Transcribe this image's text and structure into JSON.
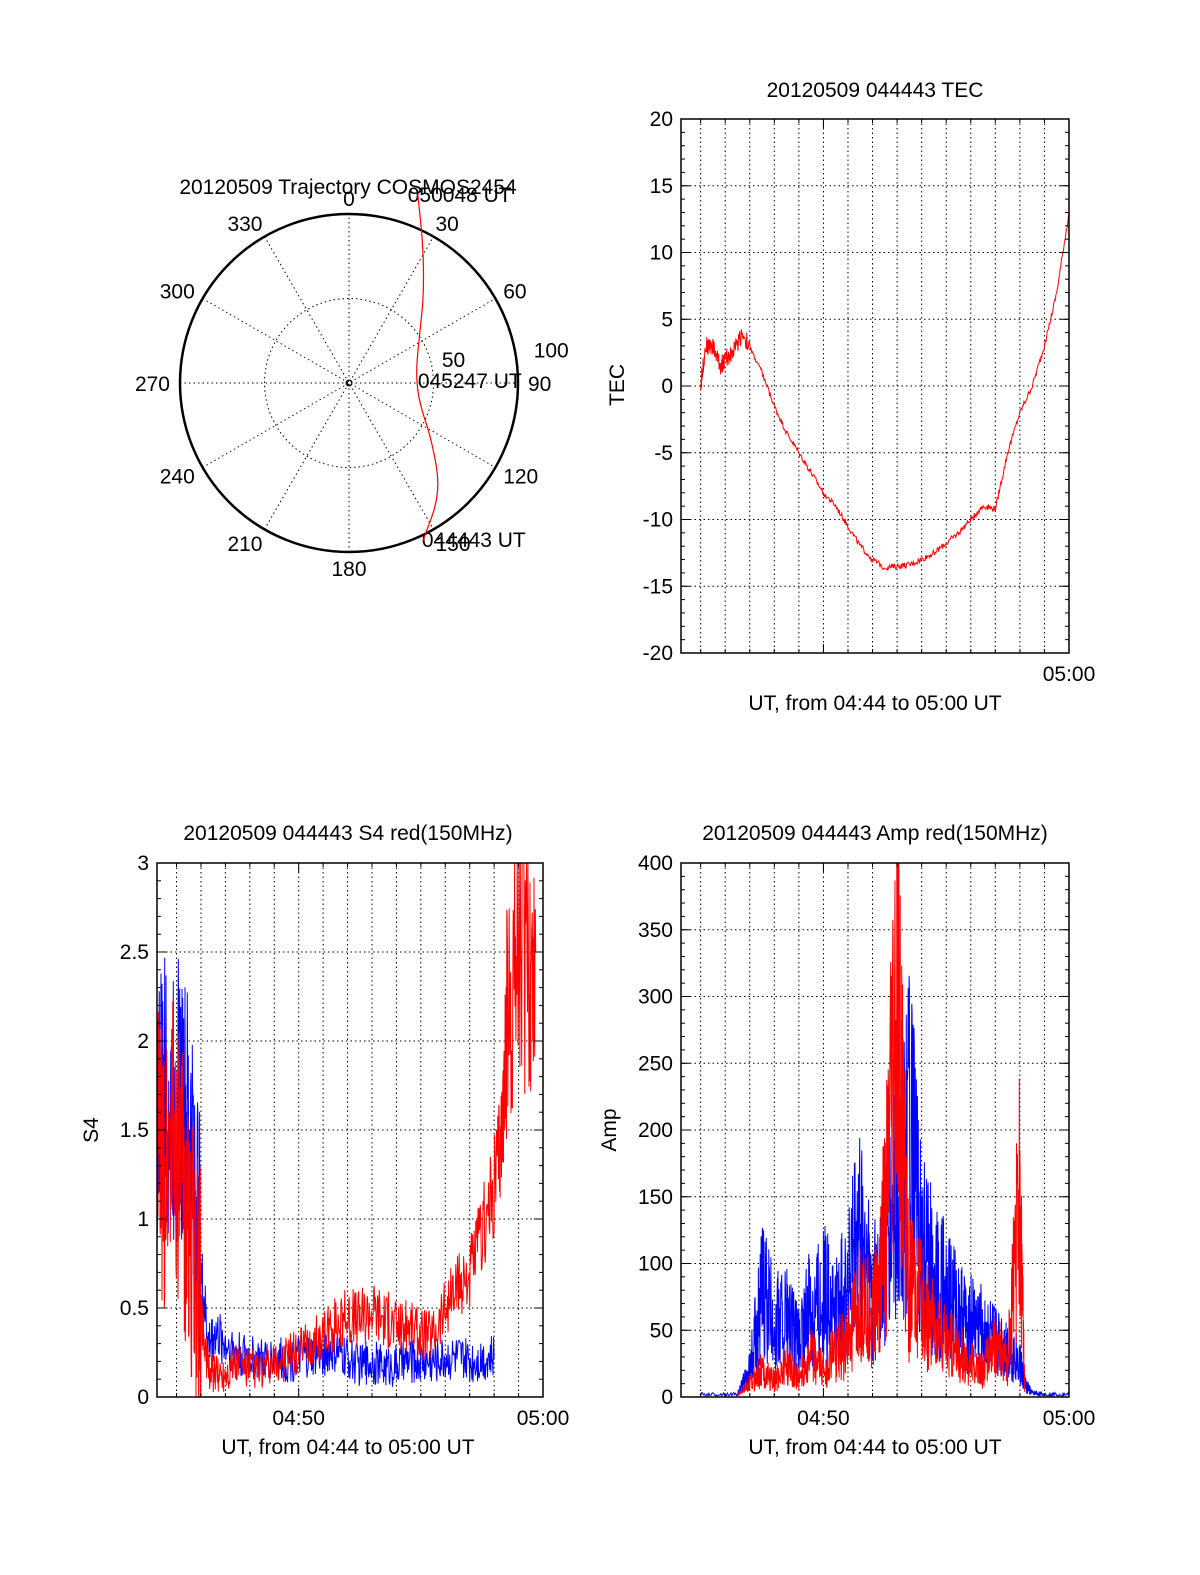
{
  "colors": {
    "red": "#ff0000",
    "blue": "#0000ff",
    "axis": "#000000"
  },
  "chart_data": [
    {
      "type": "polar",
      "title": "20120509 Trajectory COSMOS2454",
      "azimuth_labels": [
        "0",
        "30",
        "60",
        "90",
        "120",
        "150",
        "180",
        "210",
        "240",
        "270",
        "300",
        "330"
      ],
      "elevation_label": "50",
      "series": [
        {
          "color": "#ff0000",
          "points": [
            {
              "az": 20,
              "el": -17
            },
            {
              "az": 28,
              "el": 6
            },
            {
              "az": 40,
              "el": 28
            },
            {
              "az": 55,
              "el": 44
            },
            {
              "az": 72,
              "el": 52
            },
            {
              "az": 90,
              "el": 54
            },
            {
              "az": 108,
              "el": 50
            },
            {
              "az": 125,
              "el": 36
            },
            {
              "az": 140,
              "el": 14
            },
            {
              "az": 155,
              "el": -3
            }
          ]
        }
      ],
      "annotations": [
        {
          "text": "050048 UT",
          "az": 20,
          "el": -17
        },
        {
          "text": "045247 UT",
          "az": 88,
          "el": 48
        },
        {
          "text": "044443 UT",
          "az": 152,
          "el": -4
        }
      ],
      "extra_labels": [
        {
          "text": "100",
          "az": 82,
          "el": -8
        }
      ]
    },
    {
      "type": "line",
      "title": "20120509 044443 TEC",
      "xlabel": "UT, from 04:44 to 05:00 UT",
      "ylabel": "TEC",
      "xlim": [
        44.2,
        60
      ],
      "ylim": [
        -20,
        20
      ],
      "yticks": [
        "20",
        "15",
        "10",
        "5",
        "0",
        "-5",
        "-10",
        "-15",
        "-20"
      ],
      "xticks": [
        {
          "value": 60,
          "label": "05:00"
        }
      ],
      "series": [
        {
          "color": "#ff0000",
          "x": [
            45.0,
            45.2,
            45.5,
            45.8,
            46.0,
            46.3,
            46.7,
            47.1,
            47.5,
            48.0,
            48.5,
            49.0,
            49.5,
            50.0,
            50.5,
            51.0,
            51.5,
            52.0,
            52.5,
            53.0,
            53.5,
            54.0,
            54.5,
            55.0,
            55.5,
            56.0,
            56.5,
            57.0,
            57.5,
            58.0,
            58.5,
            59.0,
            59.5,
            60.0
          ],
          "y": [
            0,
            3,
            3,
            1.5,
            2,
            2.5,
            4,
            2.5,
            1,
            -1.5,
            -3.5,
            -5,
            -6.5,
            -8,
            -9,
            -10.5,
            -12,
            -13,
            -13.6,
            -13.5,
            -13.4,
            -13,
            -12.5,
            -11.8,
            -11,
            -10,
            -9,
            -9.2,
            -5,
            -2,
            0,
            3,
            7,
            13
          ]
        }
      ]
    },
    {
      "type": "line",
      "title": "20120509 044443 S4 red(150MHz)",
      "xlabel": "UT, from 04:44 to 05:00 UT",
      "ylabel": "S4",
      "xlim": [
        44.2,
        60
      ],
      "ylim": [
        0,
        3
      ],
      "yticks": [
        "0",
        "0.5",
        "1",
        "1.5",
        "2",
        "2.5",
        "3"
      ],
      "xticks": [
        {
          "value": 50,
          "label": "04:50"
        },
        {
          "value": 60,
          "label": "05:00"
        }
      ],
      "series": [
        {
          "color": "#0000ff",
          "x": [
            44.2,
            44.5,
            44.8,
            45.1,
            45.4,
            45.7,
            46.0,
            46.3,
            46.6,
            47.0,
            47.5,
            48.0,
            48.5,
            49.0,
            49.5,
            50.0,
            50.5,
            51.0,
            51.5,
            52.0,
            52.5,
            53.0,
            53.5,
            54.0,
            54.5,
            55.0,
            55.5,
            56.0,
            56.5,
            57.0,
            57.5,
            58.0
          ],
          "y": [
            1.65,
            1.7,
            1.6,
            1.7,
            1.5,
            1.3,
            0.7,
            0.3,
            0.35,
            0.3,
            0.25,
            0.22,
            0.2,
            0.22,
            0.2,
            0.22,
            0.22,
            0.25,
            0.25,
            0.22,
            0.18,
            0.2,
            0.17,
            0.18,
            0.2,
            0.2,
            0.2,
            0.22,
            0.22,
            0.2,
            0.22,
            0.22
          ]
        },
        {
          "color": "#ff0000",
          "x": [
            44.2,
            44.5,
            44.8,
            45.1,
            45.4,
            45.7,
            46.0,
            46.3,
            46.6,
            47.0,
            47.5,
            48.0,
            48.5,
            49.0,
            49.5,
            50.0,
            50.5,
            51.0,
            51.5,
            52.0,
            52.5,
            53.0,
            53.5,
            54.0,
            54.5,
            55.0,
            55.5,
            56.0,
            56.5,
            57.0,
            57.5,
            58.0,
            58.3,
            58.6,
            59.0,
            59.4,
            59.7
          ],
          "y": [
            1.5,
            1.2,
            1.6,
            1.3,
            1.0,
            0.8,
            0.5,
            0.15,
            0.12,
            0.15,
            0.2,
            0.17,
            0.15,
            0.18,
            0.22,
            0.25,
            0.3,
            0.35,
            0.4,
            0.45,
            0.45,
            0.5,
            0.45,
            0.4,
            0.4,
            0.35,
            0.35,
            0.5,
            0.6,
            0.7,
            0.9,
            1.2,
            1.5,
            2.2,
            2.6,
            2.4,
            2.5
          ]
        }
      ]
    },
    {
      "type": "line",
      "title": "20120509 044443 Amp red(150MHz)",
      "xlabel": "UT, from 04:44 to 05:00 UT",
      "ylabel": "Amp",
      "xlim": [
        44.2,
        60
      ],
      "ylim": [
        0,
        400
      ],
      "yticks": [
        "0",
        "50",
        "100",
        "150",
        "200",
        "250",
        "300",
        "350",
        "400"
      ],
      "xticks": [
        {
          "value": 50,
          "label": "04:50"
        },
        {
          "value": 60,
          "label": "05:00"
        }
      ],
      "series": [
        {
          "color": "#0000ff",
          "x": [
            45.0,
            46.5,
            47.0,
            47.5,
            48.0,
            48.5,
            49.0,
            49.5,
            50.0,
            50.5,
            51.0,
            51.5,
            52.0,
            52.5,
            53.0,
            53.5,
            54.0,
            54.5,
            55.0,
            55.5,
            56.0,
            56.5,
            57.0,
            57.5,
            58.0,
            58.2,
            58.5,
            59.0,
            60.0
          ],
          "y": [
            2,
            2,
            20,
            80,
            55,
            60,
            40,
            70,
            80,
            60,
            90,
            120,
            80,
            95,
            150,
            200,
            110,
            90,
            80,
            60,
            55,
            50,
            40,
            35,
            25,
            10,
            3,
            2,
            2
          ]
        },
        {
          "color": "#ff0000",
          "x": [
            46.5,
            47.0,
            47.5,
            48.0,
            48.5,
            49.0,
            49.5,
            50.0,
            50.5,
            51.0,
            51.5,
            52.0,
            52.5,
            53.0,
            53.5,
            54.0,
            54.5,
            55.0,
            55.5,
            56.0,
            56.5,
            57.0,
            57.5,
            58.0,
            58.2
          ],
          "y": [
            1,
            10,
            20,
            12,
            25,
            15,
            30,
            20,
            35,
            40,
            70,
            60,
            120,
            285,
            80,
            70,
            50,
            40,
            35,
            25,
            20,
            40,
            25,
            150,
            5
          ]
        }
      ]
    }
  ]
}
